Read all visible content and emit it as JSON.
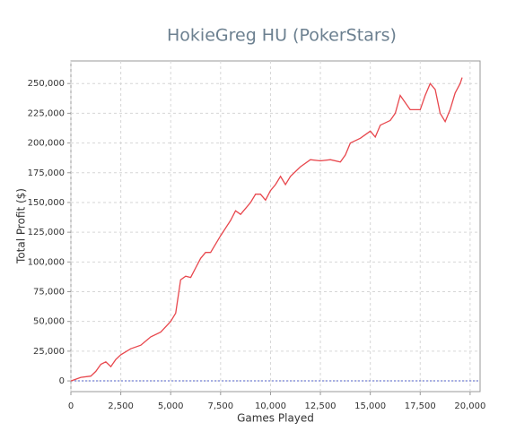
{
  "chart_data": {
    "type": "line",
    "title": "HokieGreg HU (PokerStars)",
    "x_label": "Games Played",
    "y_label": "Total Profit ($)",
    "x": [
      0,
      250,
      500,
      1000,
      1250,
      1500,
      1750,
      2000,
      2250,
      2500,
      3000,
      3500,
      4000,
      4500,
      5000,
      5250,
      5500,
      5750,
      6000,
      6250,
      6500,
      6750,
      7000,
      7500,
      8000,
      8250,
      8500,
      9000,
      9250,
      9500,
      9750,
      10000,
      10250,
      10500,
      10750,
      11000,
      11500,
      12000,
      12500,
      13000,
      13500,
      13750,
      14000,
      14500,
      15000,
      15250,
      15500,
      16000,
      16250,
      16500,
      17000,
      17500,
      17750,
      18000,
      18250,
      18500,
      18750,
      19000,
      19250,
      19500,
      19600
    ],
    "series": [
      {
        "name": "Total Profit",
        "color": "#e8474d",
        "values": [
          0,
          1500,
          3000,
          4000,
          8000,
          14000,
          16000,
          12000,
          18000,
          22000,
          27000,
          30000,
          37000,
          41000,
          50000,
          57000,
          85000,
          88000,
          87000,
          95000,
          103000,
          108000,
          108000,
          122000,
          135000,
          143000,
          140000,
          150000,
          157000,
          157000,
          152000,
          160000,
          165000,
          172000,
          165000,
          172000,
          180000,
          186000,
          185000,
          186000,
          184000,
          190000,
          200000,
          204000,
          210000,
          205000,
          215000,
          219000,
          225000,
          240000,
          228000,
          228000,
          240000,
          250000,
          245000,
          225000,
          218000,
          228000,
          242000,
          250000,
          255000
        ]
      }
    ],
    "xlim": [
      0,
      20500
    ],
    "ylim": [
      -9000,
      269000
    ],
    "xticks": [
      0,
      {
        "value": 2500,
        "label": "2,500"
      },
      {
        "value": 5000,
        "label": "5,000"
      },
      {
        "value": 7500,
        "label": "7,500"
      },
      {
        "value": 10000,
        "label": "10,000"
      },
      {
        "value": 12500,
        "label": "12,500"
      },
      {
        "value": 15000,
        "label": "15,000"
      },
      {
        "value": 17500,
        "label": "17,500"
      },
      {
        "value": 20000,
        "label": "20,000"
      }
    ],
    "yticks": [
      0,
      {
        "value": 25000,
        "label": "25,000"
      },
      {
        "value": 50000,
        "label": "50,000"
      },
      {
        "value": 75000,
        "label": "75,000"
      },
      {
        "value": 100000,
        "label": "100,000"
      },
      {
        "value": 125000,
        "label": "125,000"
      },
      {
        "value": 150000,
        "label": "150,000"
      },
      {
        "value": 175000,
        "label": "175,000"
      },
      {
        "value": 200000,
        "label": "200,000"
      },
      {
        "value": 225000,
        "label": "225,000"
      },
      {
        "value": 250000,
        "label": "250,000"
      }
    ],
    "grid": true,
    "zero_line": true
  }
}
